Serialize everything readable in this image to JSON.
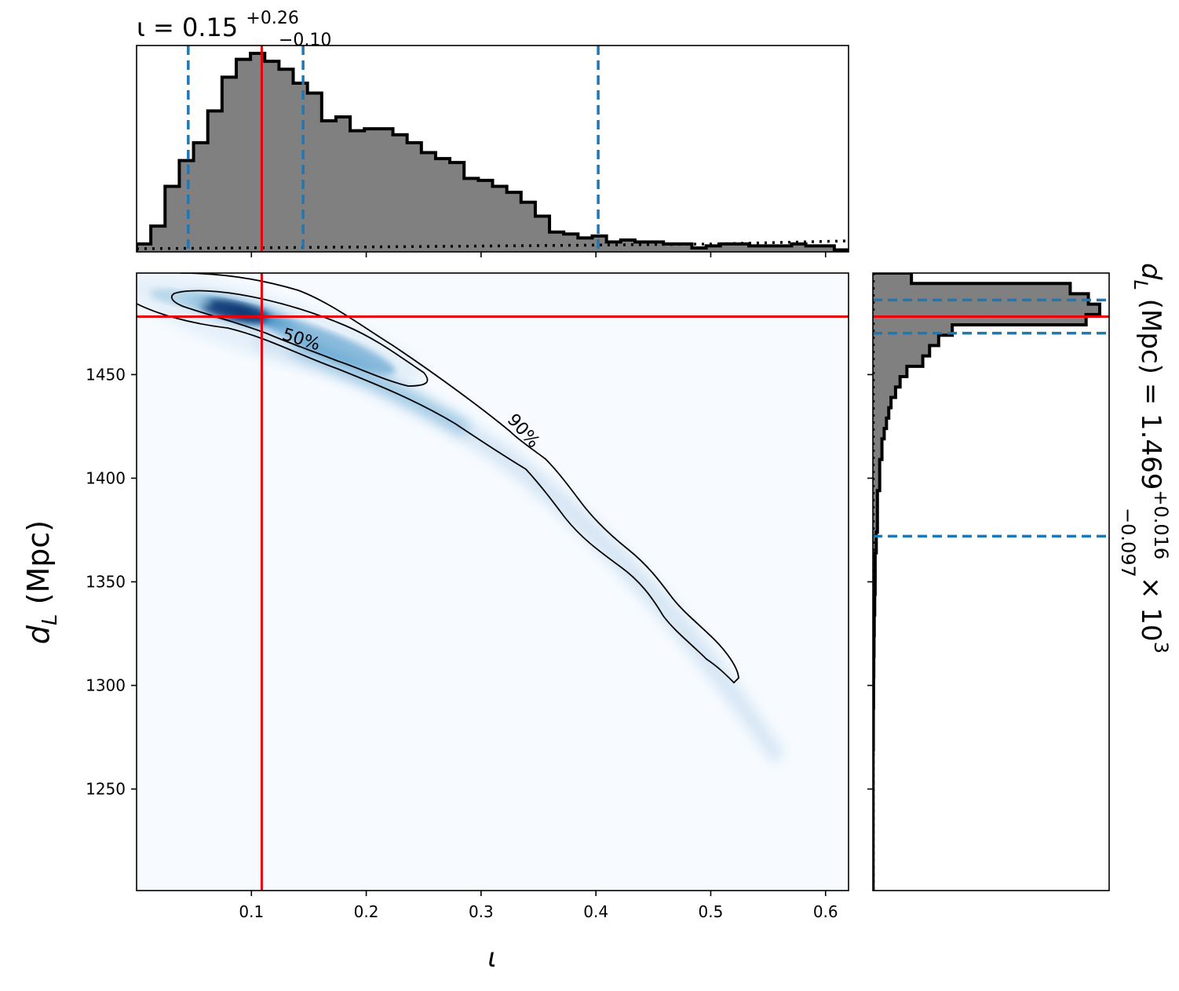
{
  "chart_data": {
    "type": "corner",
    "title_iota": "ι = 0.15",
    "title_iota_sup": "+0.26",
    "title_iota_sub": "−0.10",
    "xlabel": "ι",
    "ylabel": "d",
    "ylabel_sub": "L",
    "ylabel_unit": " (Mpc)",
    "right_label_main": "d",
    "right_label_sub": "L",
    "right_label_value": " (Mpc) = 1.469",
    "right_label_sup": "+0.016",
    "right_label_subval": "−0.097",
    "right_label_tail": " × 10",
    "right_label_exp": "3",
    "x_ticks": [
      "0.1",
      "0.2",
      "0.3",
      "0.4",
      "0.5",
      "0.6"
    ],
    "y_ticks": [
      "1250",
      "1300",
      "1350",
      "1400",
      "1450"
    ],
    "xlim": [
      0.0,
      0.62
    ],
    "ylim": [
      1201,
      1499
    ],
    "contour_labels": [
      "50%",
      "90%"
    ],
    "injection": {
      "iota": 0.109,
      "dL": 1478
    },
    "iota_quantiles": [
      0.045,
      0.145,
      0.402
    ],
    "dL_quantiles": [
      1486,
      1470,
      1372
    ],
    "iota_hist": {
      "bin_edges_start": 0.0,
      "bin_width": 0.0124,
      "counts": [
        0.04,
        0.13,
        0.33,
        0.46,
        0.55,
        0.71,
        0.88,
        0.97,
        1.0,
        0.96,
        0.92,
        0.85,
        0.8,
        0.66,
        0.68,
        0.61,
        0.62,
        0.62,
        0.59,
        0.55,
        0.5,
        0.47,
        0.45,
        0.37,
        0.36,
        0.33,
        0.3,
        0.25,
        0.18,
        0.1,
        0.09,
        0.07,
        0.08,
        0.05,
        0.06,
        0.05,
        0.05,
        0.04,
        0.04,
        0.02,
        0.03,
        0.04,
        0.04,
        0.03,
        0.03,
        0.03,
        0.04,
        0.03,
        0.03,
        0.01,
        0.01,
        0.01,
        0.0,
        0.0,
        0.0,
        0.0,
        0.0,
        0.0
      ]
    },
    "iota_prior": "dotted",
    "colors": {
      "injection": "#e8000b",
      "quantile": "#1f77b4",
      "hist_fill": "#808080",
      "density": "#08306b"
    }
  }
}
